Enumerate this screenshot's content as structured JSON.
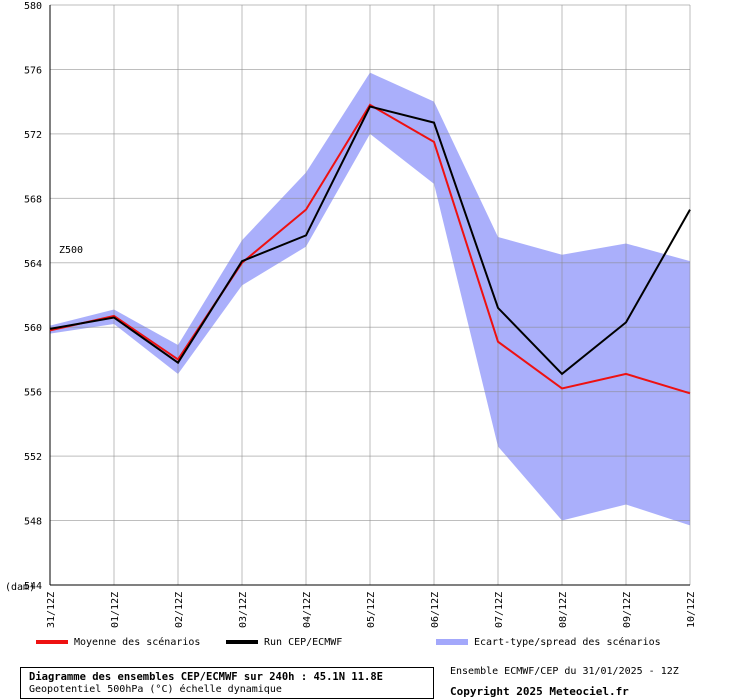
{
  "chart_data": {
    "type": "line",
    "title": "",
    "xlabel": "",
    "ylabel": "",
    "unit_label": "(dam)",
    "series_label": "Z500",
    "ylim": [
      544,
      580
    ],
    "yticks": [
      548,
      552,
      556,
      560,
      564,
      568,
      572,
      576,
      580
    ],
    "categories": [
      "31/12Z",
      "01/12Z",
      "02/12Z",
      "03/12Z",
      "04/12Z",
      "05/12Z",
      "06/12Z",
      "07/12Z",
      "08/12Z",
      "09/12Z",
      "10/12Z"
    ],
    "grid": true,
    "series": [
      {
        "name": "Moyenne des scénarios",
        "color": "#ee1111",
        "values": [
          559.8,
          560.7,
          558.0,
          564.0,
          567.3,
          573.8,
          571.5,
          559.1,
          556.2,
          557.1,
          555.9
        ]
      },
      {
        "name": "Run CEP/ECMWF",
        "color": "#000000",
        "values": [
          559.9,
          560.6,
          557.8,
          564.1,
          565.7,
          573.7,
          572.7,
          561.2,
          557.1,
          560.3,
          567.3
        ]
      }
    ],
    "band": {
      "name": "Ecart-type/spread des scénarios",
      "color": "#a3a8fb",
      "upper": [
        560.1,
        561.1,
        558.9,
        565.4,
        569.6,
        575.8,
        574.0,
        565.6,
        564.5,
        565.2,
        564.1
      ],
      "lower": [
        559.6,
        560.2,
        557.1,
        562.6,
        565.0,
        572.0,
        568.9,
        552.6,
        548.0,
        549.0,
        547.7
      ]
    }
  },
  "footer": {
    "title_line1": "Diagramme des ensembles CEP/ECMWF sur 240h : 45.1N 11.8E",
    "title_line2": "Geopotentiel 500hPa (°C) échelle dynamique",
    "info_line1": "Ensemble ECMWF/CEP du 31/01/2025 - 12Z",
    "info_line2": "Copyright 2025 Meteociel.fr"
  }
}
